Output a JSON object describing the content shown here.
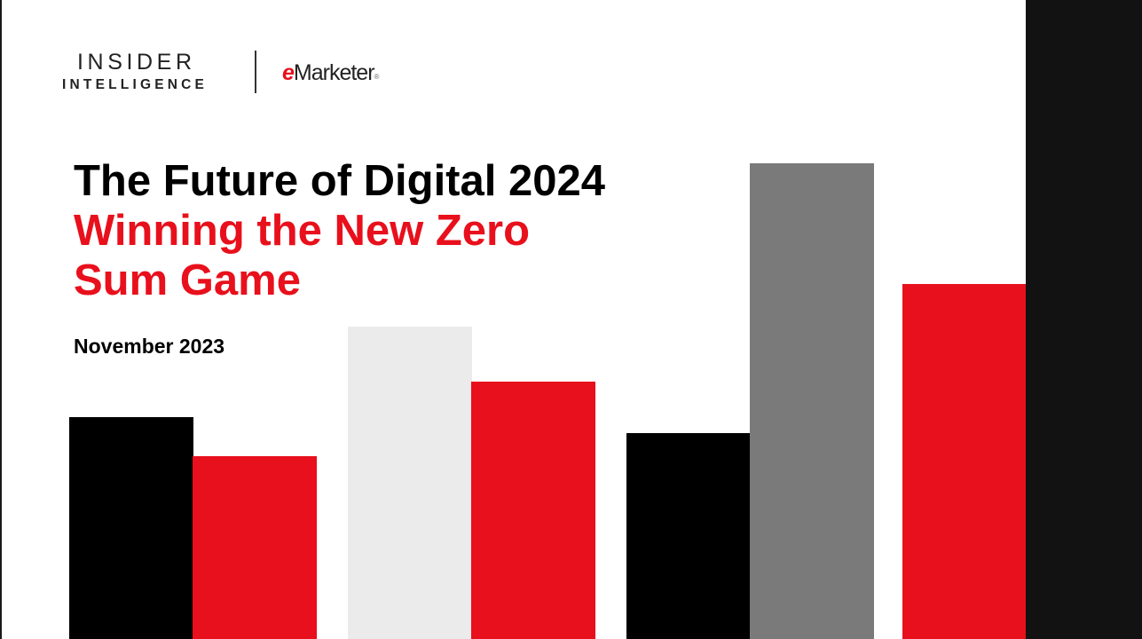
{
  "logos": {
    "insider_line1": "INSIDER",
    "insider_line2": "INTELLIGENCE",
    "emarketer_e": "e",
    "emarketer_rest": "Marketer",
    "emarketer_mark": "®"
  },
  "slide": {
    "title": "The Future of Digital 2024",
    "subtitle": "Winning the New Zero Sum Game",
    "date": "November 2023"
  },
  "colors": {
    "brand_red": "#e8101c",
    "black": "#000000",
    "light_gray": "#ebebeb",
    "dark_gray": "#7a7a7a",
    "viewer_background": "#121212"
  }
}
